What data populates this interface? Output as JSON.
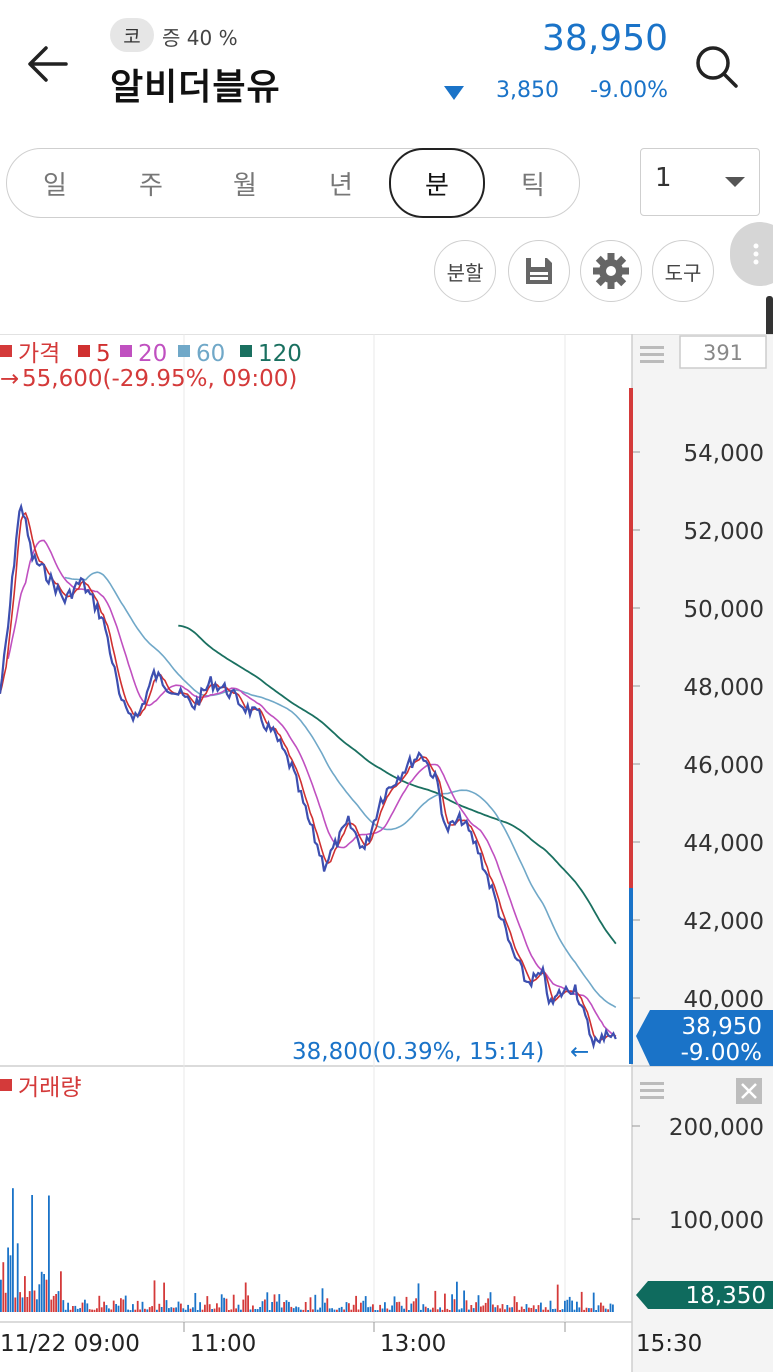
{
  "header": {
    "market_badge": "코",
    "margin_label": "증 40 %",
    "stock_name": "알비더블유",
    "price": "38,950",
    "change_abs": "3,850",
    "change_pct": "-9.00%"
  },
  "period_tabs": [
    {
      "label": "일",
      "active": false
    },
    {
      "label": "주",
      "active": false
    },
    {
      "label": "월",
      "active": false
    },
    {
      "label": "년",
      "active": false
    },
    {
      "label": "분",
      "active": true
    },
    {
      "label": "틱",
      "active": false
    }
  ],
  "interval": {
    "value": "1"
  },
  "toolbar": {
    "split_label": "분할",
    "tools_label": "도구"
  },
  "icons": {
    "back": "back-arrow-icon",
    "search": "search-icon",
    "save": "save-icon",
    "settings": "gear-icon",
    "more": "more-vertical-icon",
    "menu": "hamburger-icon",
    "close": "close-icon"
  },
  "colors": {
    "down": "#1a73c8",
    "up": "#d43a3a",
    "price_line": "#3d4fb0",
    "ma5": "#d03030",
    "ma20": "#c050c0",
    "ma60": "#70a8c8",
    "ma120": "#1a7060",
    "volume_tag": "#0f6b5e"
  },
  "price_chart": {
    "legend": {
      "price": "가격",
      "ma5": "5",
      "ma20": "20",
      "ma60": "60",
      "ma120": "120"
    },
    "high_note": "55,600(-29.95%, 09:00)",
    "low_note": "38,800(0.39%, 15:14)",
    "count_box": "391",
    "price_tag": {
      "price": "38,950",
      "pct": "-9.00%"
    },
    "y_ticks": [
      "54,000",
      "52,000",
      "50,000",
      "48,000",
      "46,000",
      "44,000",
      "42,000",
      "40,000"
    ]
  },
  "volume_chart": {
    "label": "거래량",
    "y_ticks": [
      "200,000",
      "100,000"
    ],
    "volume_tag": "18,350"
  },
  "x_ticks": [
    "11/22 09:00",
    "11:00",
    "13:00",
    "15:30"
  ],
  "chart_data": {
    "type": "line",
    "x_unit": "time",
    "ylim": [
      38500,
      55600
    ],
    "series": [
      {
        "name": "가격",
        "x": [
          "09:00",
          "09:05",
          "09:10",
          "09:13",
          "09:20",
          "09:30",
          "09:40",
          "09:50",
          "10:00",
          "10:05",
          "10:15",
          "10:25",
          "10:35",
          "10:50",
          "11:00",
          "11:10",
          "11:20",
          "11:30",
          "11:40",
          "11:50",
          "12:00",
          "12:10",
          "12:20",
          "12:35",
          "12:45",
          "12:55",
          "13:00",
          "13:10",
          "13:20",
          "13:30",
          "13:35",
          "13:45",
          "13:55",
          "14:05",
          "14:15",
          "14:25",
          "14:35",
          "14:40",
          "14:45",
          "14:55",
          "15:00",
          "15:05",
          "15:10",
          "15:14",
          "15:20"
        ],
        "values": [
          47800,
          49500,
          51800,
          52700,
          51300,
          50800,
          50200,
          50700,
          50000,
          49500,
          47500,
          47200,
          48300,
          47800,
          47500,
          48100,
          47900,
          47500,
          47200,
          46700,
          45900,
          44600,
          43400,
          44500,
          43800,
          45100,
          45400,
          45900,
          46300,
          45500,
          44300,
          44600,
          43800,
          42600,
          41300,
          40400,
          40600,
          39800,
          40100,
          40300,
          39600,
          39000,
          38800,
          39200,
          38950
        ]
      },
      {
        "name": "5"
      },
      {
        "name": "20"
      },
      {
        "name": "60"
      },
      {
        "name": "120"
      }
    ],
    "volume": {
      "label": "거래량",
      "ylim": [
        0,
        240000
      ],
      "peak_values": [
        120000,
        110000,
        70000,
        60000,
        50000,
        40000,
        35000,
        30000
      ],
      "last": 18350
    }
  }
}
